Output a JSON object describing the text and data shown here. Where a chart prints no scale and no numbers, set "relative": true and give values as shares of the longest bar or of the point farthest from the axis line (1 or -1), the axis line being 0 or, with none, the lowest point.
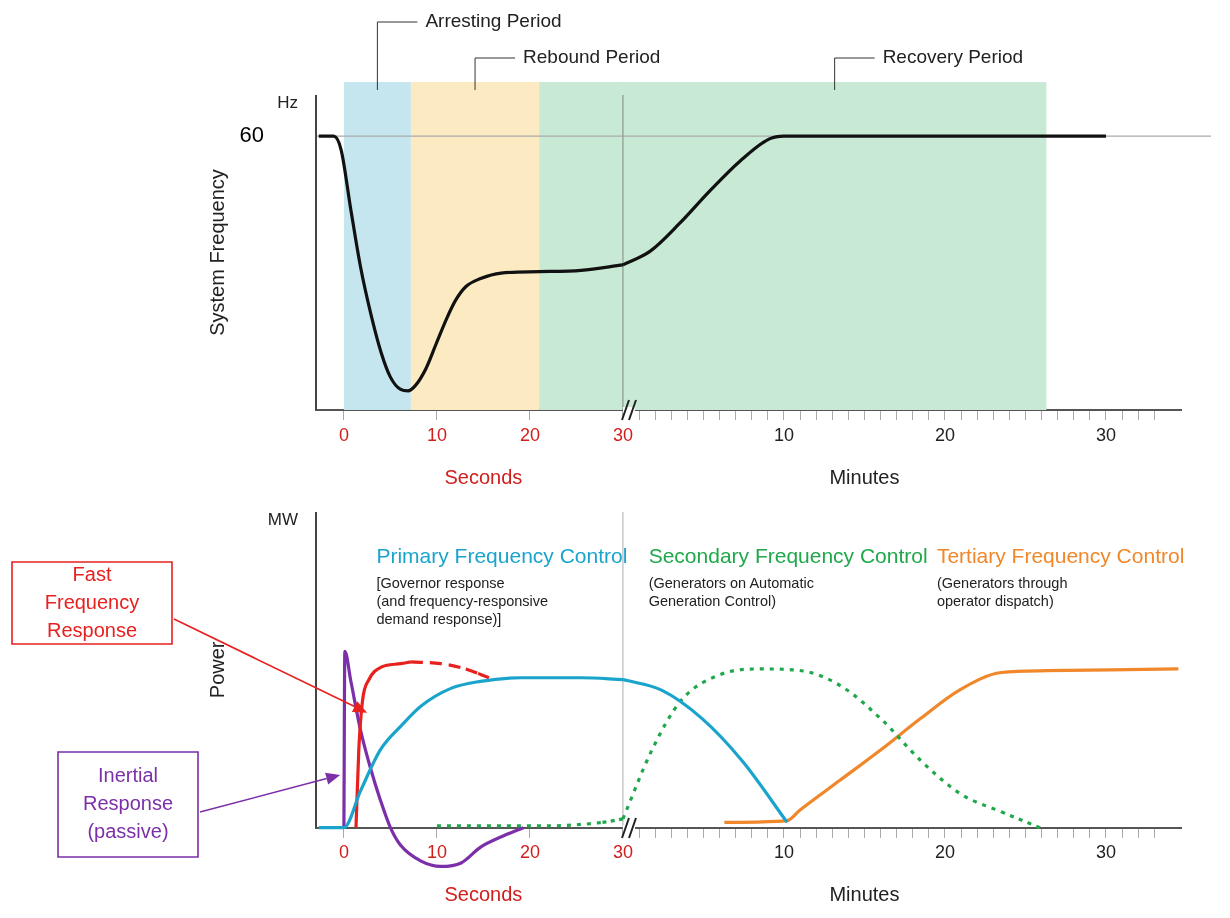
{
  "chart_data": [
    {
      "type": "line",
      "relative": true,
      "ylabel": "System Frequency",
      "xlabel": "Seconds",
      "x2label": "Minutes",
      "annotations": [
        "Hz",
        "60"
      ],
      "xlim": [
        -3,
        90
      ],
      "xticks": [
        0,
        10,
        20,
        30
      ],
      "x2lim": [
        -19.06,
        34.66
      ],
      "x2ticks": [
        {
          "value": 1,
          "label": null
        },
        {
          "value": 2,
          "label": null
        },
        {
          "value": 3,
          "label": null
        },
        {
          "value": 4,
          "label": null
        },
        {
          "value": 5,
          "label": null
        },
        {
          "value": 6,
          "label": null
        },
        {
          "value": 7,
          "label": null
        },
        {
          "value": 8,
          "label": null
        },
        {
          "value": 9,
          "label": null
        },
        10,
        {
          "value": 11,
          "label": null
        },
        {
          "value": 12,
          "label": null
        },
        {
          "value": 13,
          "label": null
        },
        {
          "value": 14,
          "label": null
        },
        {
          "value": 15,
          "label": null
        },
        {
          "value": 16,
          "label": null
        },
        {
          "value": 17,
          "label": null
        },
        {
          "value": 18,
          "label": null
        },
        {
          "value": 19,
          "label": null
        },
        20,
        {
          "value": 21,
          "label": null
        },
        {
          "value": 22,
          "label": null
        },
        {
          "value": 23,
          "label": null
        },
        {
          "value": 24,
          "label": null
        },
        {
          "value": 25,
          "label": null
        },
        {
          "value": 26,
          "label": null
        },
        {
          "value": 27,
          "label": null
        },
        {
          "value": 28,
          "label": null
        },
        {
          "value": 29,
          "label": null
        },
        30,
        {
          "value": 31,
          "label": null
        },
        {
          "value": 32,
          "label": null
        },
        {
          "value": 33,
          "label": null
        }
      ],
      "series": [
        {
          "color": "#111111",
          "x": [
            -2.7,
            -1.1,
            -0.3,
            0.75,
            1.8,
            2.9,
            4,
            5,
            6.1,
            6.9,
            7.7,
            8.8,
            9.9,
            11,
            12,
            13.1,
            14.7,
            16.9,
            21,
            25.5,
            30
          ],
          "values": [
            1,
            1,
            0.95,
            0.73,
            0.52,
            0.35,
            0.21,
            0.12,
            0.075,
            0.07,
            0.09,
            0.15,
            0.24,
            0.33,
            0.4,
            0.45,
            0.48,
            0.5,
            0.505,
            0.51,
            0.53
          ]
        },
        {
          "color": "#111111",
          "axis": "x2",
          "x": [
            0,
            1.7,
            3.5,
            5.4,
            7.3,
            9.1,
            10,
            30
          ],
          "values": [
            0.53,
            0.58,
            0.68,
            0.8,
            0.91,
            0.99,
            1,
            1
          ]
        }
      ],
      "bands": [
        {
          "axis": "x",
          "from": 0,
          "to": 7.2,
          "label": "Arresting Period",
          "color": "#c5e6ef"
        },
        {
          "axis": "x",
          "from": 7.2,
          "to": 21,
          "label": "Rebound Period",
          "color": "#fbeac2"
        },
        {
          "axis": "x",
          "from": 21,
          "to": 30,
          "color": "#c8ead4"
        },
        {
          "axis": "x2",
          "from": 0,
          "to": 26.3,
          "label": "Recovery Period",
          "color": "#c8ead4"
        }
      ],
      "ref_lines": [
        {
          "axis": "y",
          "value": 1,
          "color": "#aaaaaa"
        },
        {
          "axis": "x",
          "value": 30,
          "color": "#8a9a8e"
        }
      ]
    },
    {
      "type": "line",
      "relative": true,
      "ylabel": "Power",
      "xlabel": "Seconds",
      "x2label": "Minutes",
      "annotations": [
        "MW",
        "[Governor response\n(and frequency-responsive\ndemand response)]",
        "(Generators on Automatic\nGeneration Control)",
        "(Generators through\noperator dispatch)"
      ],
      "xlim": [
        -3,
        90
      ],
      "xticks": [
        0,
        10,
        20,
        30
      ],
      "x2lim": [
        -19.06,
        34.66
      ],
      "x2ticks": [
        {
          "value": 1,
          "label": null
        },
        {
          "value": 2,
          "label": null
        },
        {
          "value": 3,
          "label": null
        },
        {
          "value": 4,
          "label": null
        },
        {
          "value": 5,
          "label": null
        },
        {
          "value": 6,
          "label": null
        },
        {
          "value": 7,
          "label": null
        },
        {
          "value": 8,
          "label": null
        },
        {
          "value": 9,
          "label": null
        },
        10,
        {
          "value": 11,
          "label": null
        },
        {
          "value": 12,
          "label": null
        },
        {
          "value": 13,
          "label": null
        },
        {
          "value": 14,
          "label": null
        },
        {
          "value": 15,
          "label": null
        },
        {
          "value": 16,
          "label": null
        },
        {
          "value": 17,
          "label": null
        },
        {
          "value": 18,
          "label": null
        },
        {
          "value": 19,
          "label": null
        },
        20,
        {
          "value": 21,
          "label": null
        },
        {
          "value": 22,
          "label": null
        },
        {
          "value": 23,
          "label": null
        },
        {
          "value": 24,
          "label": null
        },
        {
          "value": 25,
          "label": null
        },
        {
          "value": 26,
          "label": null
        },
        {
          "value": 27,
          "label": null
        },
        {
          "value": 28,
          "label": null
        },
        {
          "value": 29,
          "label": null
        },
        30,
        {
          "value": 31,
          "label": null
        },
        {
          "value": 32,
          "label": null
        },
        {
          "value": 33,
          "label": null
        }
      ],
      "series": [
        {
          "name": "Primary Frequency Control",
          "color": "#1aa4cc",
          "x": [
            -2.7,
            0,
            1.8,
            3.9,
            6.2,
            8.3,
            11.5,
            14.7,
            19,
            25.5,
            30
          ],
          "values": [
            0,
            0,
            0.21,
            0.44,
            0.58,
            0.69,
            0.79,
            0.83,
            0.85,
            0.85,
            0.84
          ]
        },
        {
          "color": "#1aa4cc",
          "axis": "x2",
          "x": [
            0,
            2.4,
            4.9,
            7.4,
            10.2
          ],
          "values": [
            0.84,
            0.78,
            0.62,
            0.38,
            0.03
          ]
        },
        {
          "name": "Fast Frequency Response",
          "color": "#e8201e",
          "x": [
            1.3,
            1.6,
            2,
            2.7,
            4,
            6.1,
            7.2
          ],
          "values": [
            0,
            0.44,
            0.72,
            0.84,
            0.91,
            0.93,
            0.94
          ]
        },
        {
          "color": "#e8201e",
          "line_style": "dashed",
          "x": [
            7.2,
            10.4,
            13.1,
            15.6
          ],
          "values": [
            0.94,
            0.93,
            0.9,
            0.85
          ]
        },
        {
          "name": "Inertial Response (passive)",
          "color": "#7b2fa8",
          "x": [
            0,
            0.1,
            0.75,
            1.8,
            2.9,
            3.9,
            5,
            6.1,
            8.3,
            10.4,
            12.6,
            14.7,
            17,
            19.3
          ],
          "values": [
            0,
            1,
            0.83,
            0.55,
            0.33,
            0.16,
            0,
            -0.1,
            -0.19,
            -0.22,
            -0.2,
            -0.11,
            -0.05,
            0
          ]
        },
        {
          "name": "Secondary Frequency Control",
          "color": "#1fa84a",
          "line_style": "dotted",
          "x": [
            10,
            21.5,
            27.8,
            30
          ],
          "values": [
            0.01,
            0.01,
            0.03,
            0.05
          ]
        },
        {
          "color": "#1fa84a",
          "line_style": "dotted",
          "axis": "x2",
          "x": [
            0,
            1.8,
            3.6,
            6.1,
            8.6,
            11.1,
            13.6,
            16.1,
            18.5,
            21,
            23.5,
            25.9
          ],
          "values": [
            0.05,
            0.44,
            0.72,
            0.87,
            0.9,
            0.89,
            0.8,
            0.61,
            0.38,
            0.19,
            0.09,
            0
          ]
        },
        {
          "name": "Tertiary Frequency Control",
          "color": "#f0872a",
          "axis": "x2",
          "x": [
            6.3,
            10.2,
            11,
            13.5,
            16,
            18.5,
            20.9,
            23.5,
            26.3,
            34.5
          ],
          "values": [
            0.03,
            0.04,
            0.1,
            0.27,
            0.44,
            0.62,
            0.78,
            0.88,
            0.89,
            0.9
          ]
        }
      ],
      "ref_lines": [
        {
          "axis": "x",
          "value": 30,
          "color": "#bbbbbb"
        }
      ]
    }
  ]
}
